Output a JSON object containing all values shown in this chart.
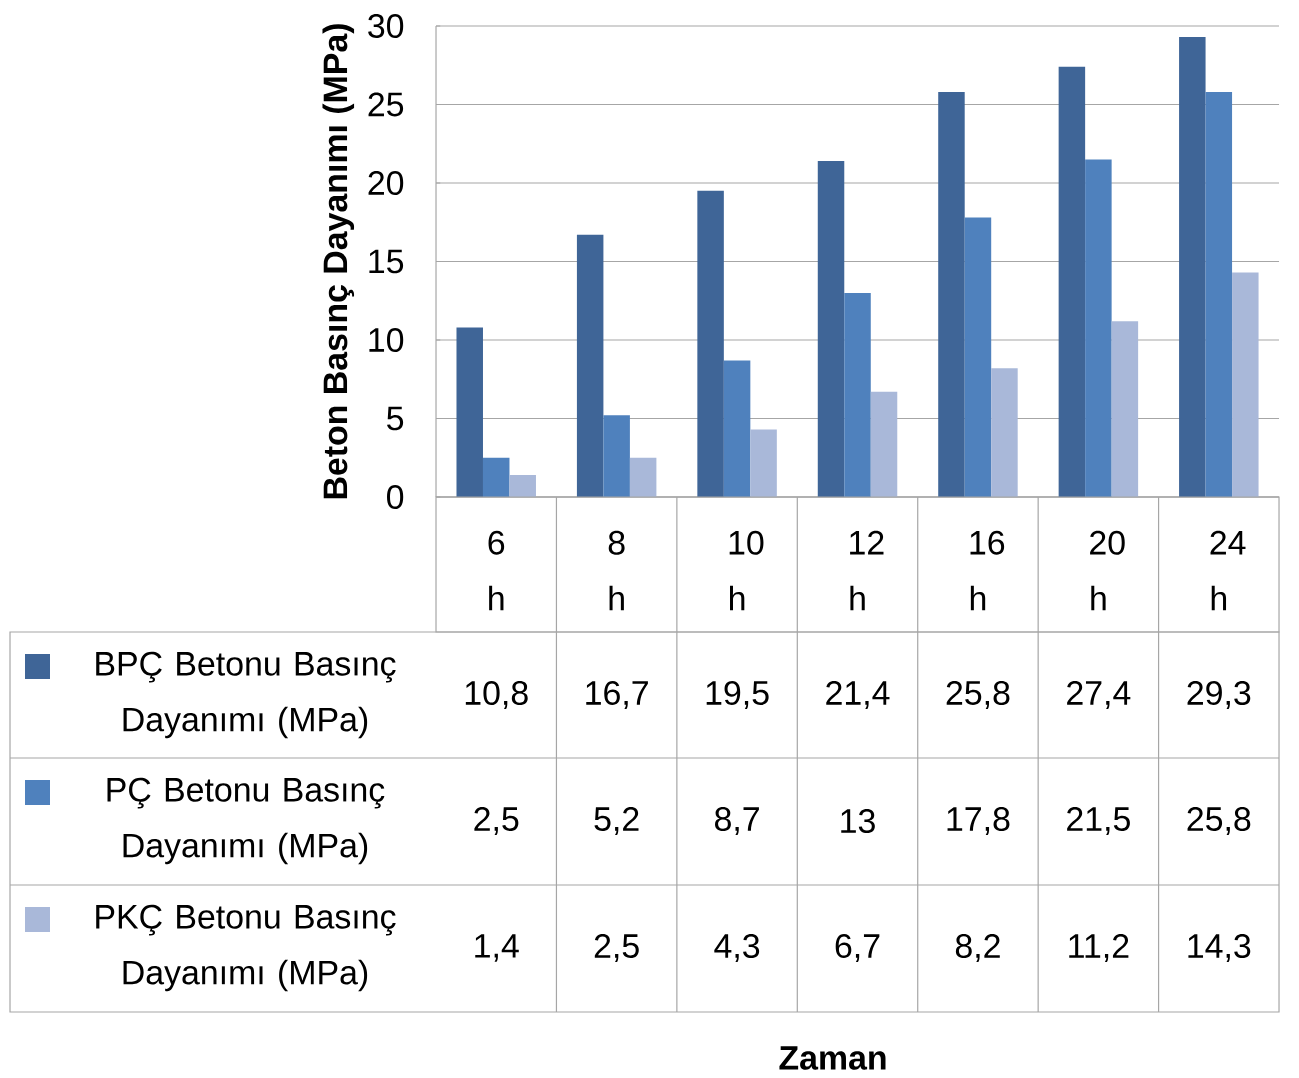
{
  "chart_data": {
    "type": "bar",
    "ylabel": "Beton Basınç Dayanımı (MPa)",
    "annotations": [
      "Zaman"
    ],
    "categories": [
      "6 h",
      "8 h",
      "10 h",
      "12 h",
      "16 h",
      "20 h",
      "24 h"
    ],
    "series": [
      {
        "name": "BPÇ Betonu Basınç Dayanımı (MPa)",
        "color": "#3f6597",
        "values": [
          10.8,
          16.7,
          19.5,
          21.4,
          25.8,
          27.4,
          29.3
        ],
        "value_labels": [
          "10,8",
          "16,7",
          "19,5",
          "21,4",
          "25,8",
          "27,4",
          "29,3"
        ]
      },
      {
        "name": "PÇ Betonu Basınç Dayanımı (MPa)",
        "color": "#4f81bd",
        "values": [
          2.5,
          5.2,
          8.7,
          13,
          17.8,
          21.5,
          25.8
        ],
        "value_labels": [
          "2,5",
          "5,2",
          "8,7",
          "13",
          "17,8",
          "21,5",
          "25,8"
        ]
      },
      {
        "name": "PKÇ Betonu Basınç Dayanımı (MPa)",
        "color": "#a9b8d9",
        "values": [
          1.4,
          2.5,
          4.3,
          6.7,
          8.2,
          11.2,
          14.3
        ],
        "value_labels": [
          "1,4",
          "2,5",
          "4,3",
          "6,7",
          "8,2",
          "11,2",
          "14,3"
        ]
      }
    ],
    "ylim": [
      0,
      30
    ],
    "yticks": [
      0,
      5,
      10,
      15,
      20,
      25,
      30
    ],
    "grid": "y",
    "legend": "bottom"
  }
}
